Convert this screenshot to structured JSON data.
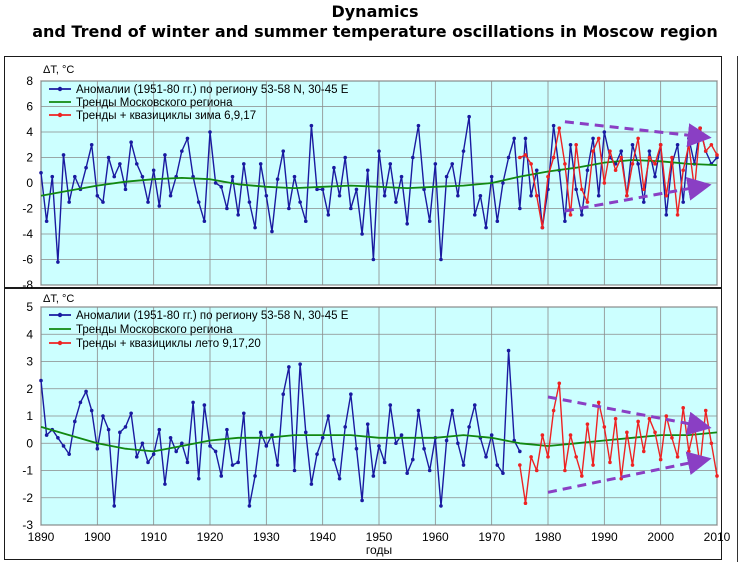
{
  "title": {
    "line1": "Dynamics",
    "line2": "and Trend  of winter and summer temperature oscillations  in Moscow region"
  },
  "colors": {
    "plot_background": "#ccffff",
    "anomaly": "#1a1aa0",
    "trend": "#118811",
    "model": "#ee2222",
    "arrows": "#8a3fc4"
  },
  "chart_data": [
    {
      "type": "line",
      "panel": "winter",
      "y_axis_label": "ΔT, °C",
      "xlim": [
        1890,
        2010
      ],
      "ylim": [
        -8,
        8
      ],
      "yticks": [
        -8,
        -6,
        -4,
        -2,
        0,
        2,
        4,
        6,
        8
      ],
      "grid": true,
      "legend_position": "top-left",
      "series": [
        {
          "name": "Аномалии (1951-80 гг.) по региону 53-58 N, 30-45 E",
          "color": "#1a1aa0",
          "marker": "dot",
          "x": [
            1890,
            1891,
            1892,
            1893,
            1894,
            1895,
            1896,
            1897,
            1898,
            1899,
            1900,
            1901,
            1902,
            1903,
            1904,
            1905,
            1906,
            1907,
            1908,
            1909,
            1910,
            1911,
            1912,
            1913,
            1914,
            1915,
            1916,
            1917,
            1918,
            1919,
            1920,
            1921,
            1922,
            1923,
            1924,
            1925,
            1926,
            1927,
            1928,
            1929,
            1930,
            1931,
            1932,
            1933,
            1934,
            1935,
            1936,
            1937,
            1938,
            1939,
            1940,
            1941,
            1942,
            1943,
            1944,
            1945,
            1946,
            1947,
            1948,
            1949,
            1950,
            1951,
            1952,
            1953,
            1954,
            1955,
            1956,
            1957,
            1958,
            1959,
            1960,
            1961,
            1962,
            1963,
            1964,
            1965,
            1966,
            1967,
            1968,
            1969,
            1970,
            1971,
            1972,
            1973,
            1974,
            1975,
            1976,
            1977,
            1978,
            1979,
            1980,
            1981,
            1982,
            1983,
            1984,
            1985,
            1986,
            1987,
            1988,
            1989,
            1990,
            1991,
            1992,
            1993,
            1994,
            1995,
            1996,
            1997,
            1998,
            1999,
            2000,
            2001,
            2002,
            2003,
            2004,
            2005,
            2006,
            2007,
            2008,
            2009,
            2010
          ],
          "values": [
            0.8,
            -3.0,
            0.5,
            -6.2,
            2.2,
            -1.5,
            0.5,
            -0.5,
            1.2,
            3.0,
            -1.0,
            -1.5,
            2.0,
            0.5,
            1.5,
            -0.5,
            3.2,
            1.5,
            0.5,
            -1.5,
            1.0,
            -1.8,
            2.2,
            -1.0,
            0.5,
            2.5,
            3.5,
            0.5,
            -1.5,
            -3.0,
            4.0,
            0.0,
            -0.3,
            -2.0,
            0.5,
            -2.5,
            1.5,
            -1.5,
            -3.5,
            1.5,
            -1.0,
            -3.8,
            0.3,
            2.5,
            -2.0,
            0.5,
            -1.5,
            -3.0,
            4.5,
            -0.5,
            -0.5,
            -2.5,
            1.2,
            -1.0,
            2.0,
            -2.0,
            -0.5,
            -4.0,
            1.0,
            -6.0,
            2.5,
            -1.0,
            1.5,
            -1.5,
            0.5,
            -3.2,
            2.0,
            4.5,
            -0.5,
            -3.0,
            1.5,
            -6.0,
            0.5,
            1.5,
            -1.0,
            2.5,
            5.2,
            -2.5,
            -1.0,
            -3.5,
            0.5,
            -3.0,
            0.0,
            2.0,
            3.5,
            -2.0,
            3.5,
            -1.0,
            1.0,
            -3.5,
            -0.5,
            4.5,
            1.0,
            -3.0,
            3.0,
            -0.5,
            -2.5,
            1.0,
            3.5,
            -1.0,
            4.0,
            2.0,
            1.5,
            2.5,
            -1.0,
            3.0,
            1.5,
            -1.5,
            2.5,
            0.5,
            3.0,
            -2.5,
            1.5,
            3.0,
            -1.5,
            3.5,
            1.5,
            4.3,
            2.5,
            1.5,
            2.0
          ]
        },
        {
          "name": "Тренды Московского региона",
          "color": "#118811",
          "marker": "none",
          "x": [
            1890,
            1895,
            1900,
            1905,
            1910,
            1915,
            1920,
            1925,
            1930,
            1935,
            1940,
            1945,
            1950,
            1955,
            1960,
            1965,
            1970,
            1975,
            1980,
            1985,
            1990,
            1995,
            2000,
            2005,
            2010
          ],
          "values": [
            -1.0,
            -0.6,
            -0.2,
            0.1,
            0.3,
            0.4,
            0.3,
            -0.1,
            -0.3,
            -0.4,
            -0.3,
            -0.2,
            -0.3,
            -0.4,
            -0.3,
            -0.2,
            0.0,
            0.5,
            0.9,
            1.2,
            1.6,
            1.8,
            1.7,
            1.5,
            1.4
          ]
        },
        {
          "name": "Тренды + квазициклы зима 6,9,17",
          "color": "#ee2222",
          "marker": "dot",
          "x": [
            1975,
            1976,
            1977,
            1978,
            1979,
            1980,
            1981,
            1982,
            1983,
            1984,
            1985,
            1986,
            1987,
            1988,
            1989,
            1990,
            1991,
            1992,
            1993,
            1994,
            1995,
            1996,
            1997,
            1998,
            1999,
            2000,
            2001,
            2002,
            2003,
            2004,
            2005,
            2006,
            2007,
            2008,
            2009,
            2010
          ],
          "values": [
            2.0,
            2.2,
            1.5,
            -1.0,
            -3.5,
            0.5,
            2.0,
            4.3,
            1.5,
            -2.5,
            3.0,
            -0.5,
            -1.5,
            2.5,
            3.5,
            0.0,
            2.5,
            1.0,
            2.0,
            -1.0,
            1.5,
            3.5,
            -0.5,
            2.0,
            1.5,
            3.0,
            -1.0,
            2.0,
            -2.5,
            1.0,
            3.0,
            -0.5,
            4.3,
            2.5,
            3.0,
            2.2
          ]
        }
      ],
      "annotations": [
        "dashed converging arrows (purple) over 1980-2010"
      ]
    },
    {
      "type": "line",
      "panel": "summer",
      "y_axis_label": "ΔT, °C",
      "x_axis_label": "годы",
      "xlim": [
        1890,
        2010
      ],
      "ylim": [
        -3,
        5
      ],
      "xticks": [
        1890,
        1900,
        1910,
        1920,
        1930,
        1940,
        1950,
        1960,
        1970,
        1980,
        1990,
        2000,
        2010
      ],
      "yticks": [
        -3,
        -2,
        -1,
        0,
        1,
        2,
        3,
        4,
        5
      ],
      "grid": true,
      "legend_position": "top-left",
      "series": [
        {
          "name": "Аномалии (1951-80 гг.) по региону 53-58 N, 30-45 E",
          "color": "#1a1aa0",
          "marker": "dot",
          "x": [
            1890,
            1891,
            1892,
            1893,
            1894,
            1895,
            1896,
            1897,
            1898,
            1899,
            1900,
            1901,
            1902,
            1903,
            1904,
            1905,
            1906,
            1907,
            1908,
            1909,
            1910,
            1911,
            1912,
            1913,
            1914,
            1915,
            1916,
            1917,
            1918,
            1919,
            1920,
            1921,
            1922,
            1923,
            1924,
            1925,
            1926,
            1927,
            1928,
            1929,
            1930,
            1931,
            1932,
            1933,
            1934,
            1935,
            1936,
            1937,
            1938,
            1939,
            1940,
            1941,
            1942,
            1943,
            1944,
            1945,
            1946,
            1947,
            1948,
            1949,
            1950,
            1951,
            1952,
            1953,
            1954,
            1955,
            1956,
            1957,
            1958,
            1959,
            1960,
            1961,
            1962,
            1963,
            1964,
            1965,
            1966,
            1967,
            1968,
            1969,
            1970,
            1971,
            1972,
            1973,
            1974,
            1975
          ],
          "values": [
            2.3,
            0.3,
            0.5,
            0.2,
            -0.1,
            -0.4,
            0.8,
            1.5,
            1.9,
            1.2,
            -0.2,
            1.0,
            0.5,
            -2.3,
            0.4,
            0.6,
            1.1,
            -0.5,
            0.0,
            -0.7,
            -0.4,
            0.5,
            -1.5,
            0.2,
            -0.3,
            0.0,
            -0.7,
            1.5,
            -1.3,
            1.4,
            -0.1,
            -0.3,
            -1.2,
            0.5,
            -0.8,
            -0.7,
            1.1,
            -2.3,
            -1.2,
            0.4,
            -0.1,
            0.3,
            -0.8,
            1.8,
            2.8,
            -1.0,
            2.9,
            0.4,
            -1.5,
            -0.4,
            0.2,
            1.0,
            -0.6,
            -1.3,
            0.6,
            1.8,
            -0.2,
            -2.1,
            0.7,
            -1.2,
            -0.1,
            -0.7,
            1.4,
            0.0,
            0.3,
            -1.1,
            -0.6,
            1.2,
            -0.2,
            -1.0,
            0.2,
            -2.3,
            0.1,
            1.2,
            0.0,
            -0.8,
            0.6,
            1.4,
            0.2,
            -0.5,
            0.3,
            -0.8,
            -1.1,
            3.4,
            0.1,
            -0.3
          ]
        },
        {
          "name": "Тренды Московского региона",
          "color": "#118811",
          "marker": "none",
          "x": [
            1890,
            1895,
            1900,
            1905,
            1910,
            1915,
            1920,
            1925,
            1930,
            1935,
            1940,
            1945,
            1950,
            1955,
            1960,
            1965,
            1970,
            1975,
            1980,
            1985,
            1990,
            1995,
            2000,
            2005,
            2010
          ],
          "values": [
            0.6,
            0.3,
            0.0,
            -0.2,
            -0.3,
            -0.1,
            0.1,
            0.2,
            0.2,
            0.3,
            0.3,
            0.3,
            0.2,
            0.2,
            0.2,
            0.3,
            0.2,
            0.0,
            -0.1,
            0.0,
            0.1,
            0.2,
            0.3,
            0.3,
            0.4
          ]
        },
        {
          "name": "Тренды + квазициклы лето 9,17,20",
          "color": "#ee2222",
          "marker": "dot",
          "x": [
            1975,
            1976,
            1977,
            1978,
            1979,
            1980,
            1981,
            1982,
            1983,
            1984,
            1985,
            1986,
            1987,
            1988,
            1989,
            1990,
            1991,
            1992,
            1993,
            1994,
            1995,
            1996,
            1997,
            1998,
            1999,
            2000,
            2001,
            2002,
            2003,
            2004,
            2005,
            2006,
            2007,
            2008,
            2009,
            2010
          ],
          "values": [
            -0.8,
            -2.2,
            -0.5,
            -1.0,
            0.3,
            -0.5,
            1.2,
            2.2,
            -1.0,
            0.3,
            -0.5,
            -1.2,
            0.7,
            -0.8,
            1.5,
            0.6,
            -0.7,
            0.9,
            -1.3,
            0.4,
            -0.8,
            0.8,
            -0.3,
            0.9,
            0.4,
            -0.6,
            1.0,
            0.2,
            -0.5,
            1.3,
            -0.3,
            0.6,
            -0.8,
            1.2,
            0.0,
            -1.2
          ]
        }
      ],
      "annotations": [
        "dashed converging arrows (purple) over 1980-2010"
      ]
    }
  ]
}
